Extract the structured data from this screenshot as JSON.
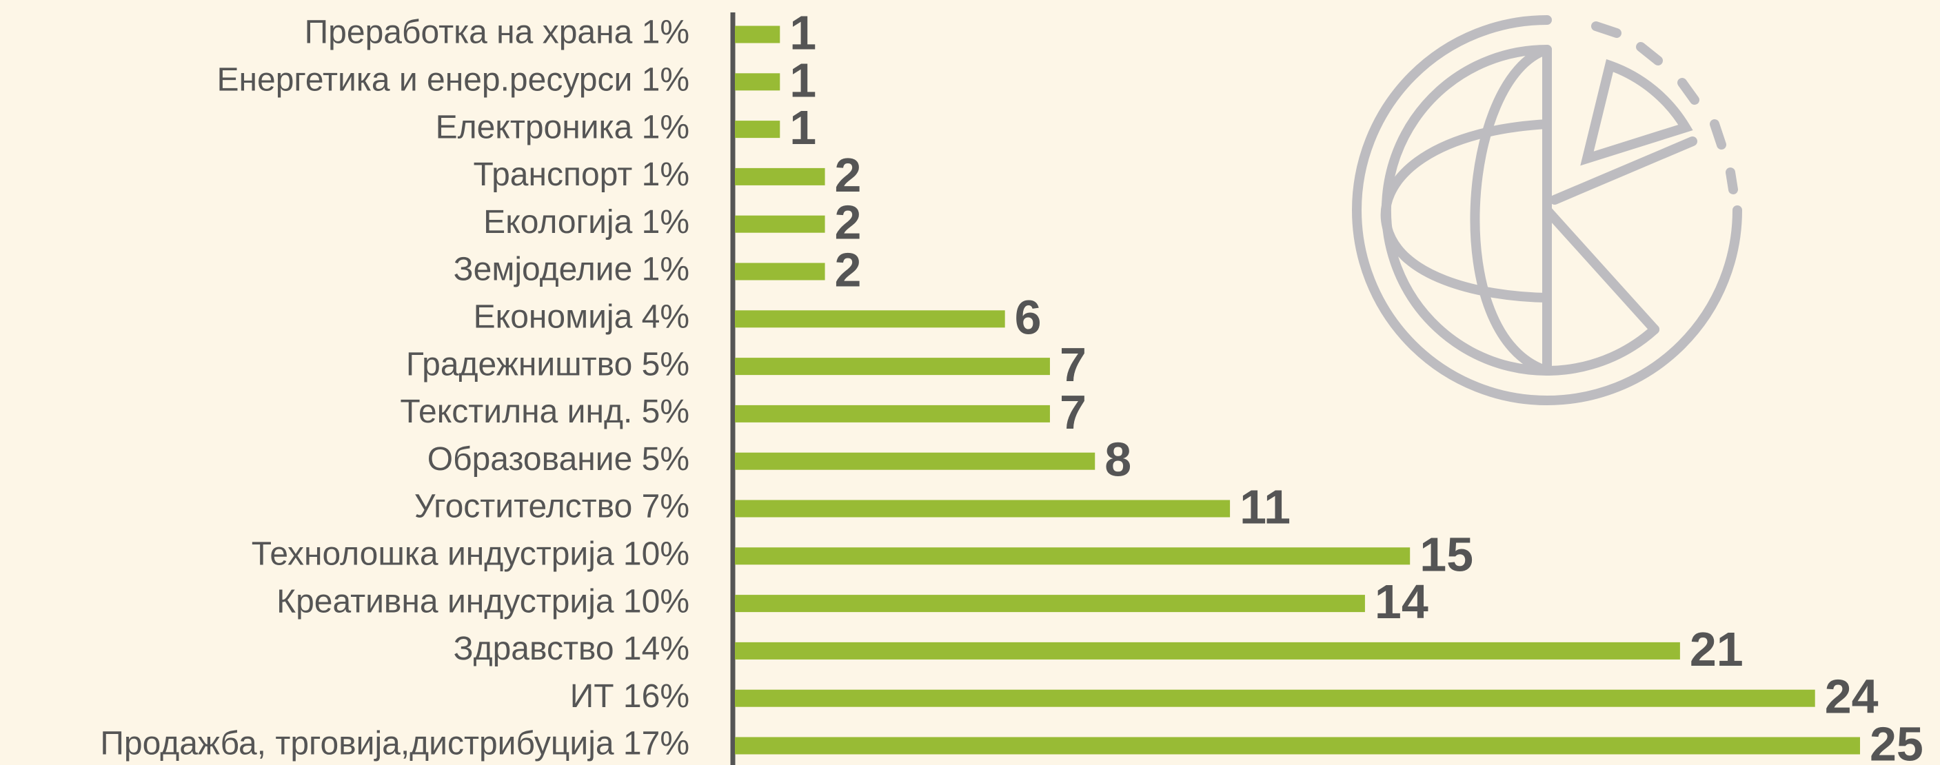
{
  "chart_data": {
    "type": "bar",
    "orientation": "horizontal",
    "categories": [
      "Преработка на храна 1%",
      "Енергетика и енер.ресурси 1%",
      "Електроника 1%",
      "Транспорт 1%",
      "Екологија 1%",
      "Земјоделие 1%",
      "Економија 4%",
      "Градежништво 5%",
      "Текстилна инд. 5%",
      "Образование 5%",
      "Угостителство 7%",
      "Технолошка индустрија 10%",
      "Креативна индустрија 10%",
      "Здравство 14%",
      "ИТ 16%",
      "Продажба, трговија,дистрибуција 17%"
    ],
    "values": [
      1,
      1,
      1,
      2,
      2,
      2,
      6,
      7,
      7,
      8,
      11,
      15,
      14,
      21,
      24,
      25
    ],
    "color": "#98bb35"
  }
}
